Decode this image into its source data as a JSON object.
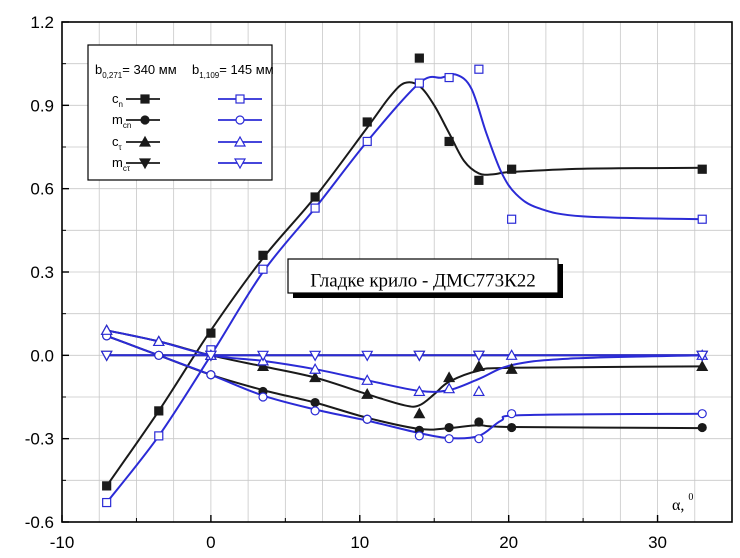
{
  "chart_data": {
    "type": "line",
    "title": "",
    "annotation": "Гладке крило - ДМС773К22",
    "xlabel": "α, ⁰",
    "xlabel_main": "α,",
    "xlabel_sup": "0",
    "ylabel": "",
    "xlim": [
      -10,
      35
    ],
    "ylim": [
      -0.6,
      1.2
    ],
    "xticks": [
      -10,
      0,
      10,
      20,
      30
    ],
    "yticks": [
      -0.6,
      -0.3,
      0.0,
      0.3,
      0.6,
      0.9,
      1.2
    ],
    "xtick_labels": [
      "-10",
      "0",
      "10",
      "20",
      "30"
    ],
    "ytick_labels": [
      "-0.6",
      "-0.3",
      "0.0",
      "0.3",
      "0.6",
      "0.9",
      "1.2"
    ],
    "grid": true,
    "legend_position": "top-left",
    "legend": {
      "group_titles": [
        {
          "main": "b",
          "sub": "0,271",
          "rest": "= 340 мм"
        },
        {
          "main": "b",
          "sub": "1,109",
          "rest": "= 145 мм"
        }
      ],
      "rows": [
        {
          "main": "c",
          "sub": "n"
        },
        {
          "main": "m",
          "sub": "cn"
        },
        {
          "main": "c",
          "sub": "τ"
        },
        {
          "main": "m",
          "sub": "cτ"
        }
      ]
    },
    "series": [
      {
        "name": "cn",
        "group": "b0,271 = 340 мм",
        "color": "#1a1a1a",
        "marker": "square-filled",
        "points": [
          [
            -7,
            -0.47
          ],
          [
            -3.5,
            -0.2
          ],
          [
            0,
            0.08
          ],
          [
            3.5,
            0.36
          ],
          [
            7,
            0.57
          ],
          [
            10.5,
            0.84
          ],
          [
            14,
            1.07
          ],
          [
            16,
            0.77
          ],
          [
            18,
            0.63
          ],
          [
            20.2,
            0.67
          ],
          [
            33,
            0.67
          ]
        ],
        "curve": [
          [
            -7,
            -0.47
          ],
          [
            -3.5,
            -0.2
          ],
          [
            0,
            0.09
          ],
          [
            3.5,
            0.35
          ],
          [
            7,
            0.57
          ],
          [
            10.5,
            0.82
          ],
          [
            12,
            0.93
          ],
          [
            13,
            0.98
          ],
          [
            14,
            0.97
          ],
          [
            15,
            0.9
          ],
          [
            16,
            0.8
          ],
          [
            17,
            0.7
          ],
          [
            18,
            0.655
          ],
          [
            19,
            0.652
          ],
          [
            20.2,
            0.66
          ],
          [
            25,
            0.672
          ],
          [
            33,
            0.675
          ]
        ]
      },
      {
        "name": "mcn",
        "group": "b0,271 = 340 мм",
        "color": "#1a1a1a",
        "marker": "circle-filled",
        "points": [
          [
            -7,
            0.07
          ],
          [
            -3.5,
            0.0
          ],
          [
            0,
            -0.07
          ],
          [
            3.5,
            -0.13
          ],
          [
            7,
            -0.17
          ],
          [
            10.5,
            -0.23
          ],
          [
            14,
            -0.27
          ],
          [
            16,
            -0.26
          ],
          [
            18,
            -0.24
          ],
          [
            20.2,
            -0.26
          ],
          [
            33,
            -0.26
          ]
        ],
        "curve": [
          [
            -7,
            0.07
          ],
          [
            -3.5,
            0.0
          ],
          [
            0,
            -0.07
          ],
          [
            3.5,
            -0.125
          ],
          [
            7,
            -0.17
          ],
          [
            10.5,
            -0.225
          ],
          [
            14,
            -0.265
          ],
          [
            16,
            -0.262
          ],
          [
            18,
            -0.252
          ],
          [
            20.2,
            -0.258
          ],
          [
            33,
            -0.262
          ]
        ]
      },
      {
        "name": "cτ",
        "group": "b0,271 = 340 мм",
        "color": "#1a1a1a",
        "marker": "triangle-up-filled",
        "points": [
          [
            -7,
            0.09
          ],
          [
            -3.5,
            0.05
          ],
          [
            0,
            0.0
          ],
          [
            3.5,
            -0.04
          ],
          [
            7,
            -0.08
          ],
          [
            10.5,
            -0.14
          ],
          [
            14,
            -0.21
          ],
          [
            16,
            -0.08
          ],
          [
            18,
            -0.04
          ],
          [
            20.2,
            -0.05
          ],
          [
            33,
            -0.04
          ]
        ],
        "curve": [
          [
            -7,
            0.09
          ],
          [
            -3.5,
            0.05
          ],
          [
            0,
            0.0
          ],
          [
            3.5,
            -0.04
          ],
          [
            7,
            -0.08
          ],
          [
            10.5,
            -0.14
          ],
          [
            13,
            -0.18
          ],
          [
            14,
            -0.18
          ],
          [
            15,
            -0.14
          ],
          [
            16,
            -0.095
          ],
          [
            18,
            -0.055
          ],
          [
            20.2,
            -0.045
          ],
          [
            33,
            -0.04
          ]
        ]
      },
      {
        "name": "mcτ",
        "group": "b0,271 = 340 мм",
        "color": "#1a1a1a",
        "marker": "triangle-down-filled",
        "points": [
          [
            -7,
            0.0
          ],
          [
            0,
            0.0
          ],
          [
            14,
            0.0
          ],
          [
            18,
            0.0
          ],
          [
            33,
            0.0
          ]
        ],
        "curve": [
          [
            -7,
            0.0
          ],
          [
            33,
            0.0
          ]
        ]
      },
      {
        "name": "cn",
        "group": "b1,109 = 145 мм",
        "color": "#2b2bd6",
        "marker": "square-open",
        "points": [
          [
            -7,
            -0.53
          ],
          [
            -3.5,
            -0.29
          ],
          [
            0,
            0.02
          ],
          [
            3.5,
            0.31
          ],
          [
            7,
            0.53
          ],
          [
            10.5,
            0.77
          ],
          [
            14,
            0.98
          ],
          [
            16,
            1.0
          ],
          [
            18,
            1.03
          ],
          [
            20.2,
            0.49
          ],
          [
            33,
            0.49
          ]
        ],
        "curve": [
          [
            -7,
            -0.53
          ],
          [
            -3.5,
            -0.29
          ],
          [
            0,
            0.0
          ],
          [
            3.5,
            0.3
          ],
          [
            7,
            0.53
          ],
          [
            10.5,
            0.77
          ],
          [
            14,
            0.98
          ],
          [
            15.5,
            1.0
          ],
          [
            16.5,
            1.01
          ],
          [
            17.5,
            0.96
          ],
          [
            18.5,
            0.8
          ],
          [
            19.5,
            0.66
          ],
          [
            20.5,
            0.58
          ],
          [
            22,
            0.53
          ],
          [
            25,
            0.5
          ],
          [
            33,
            0.49
          ]
        ]
      },
      {
        "name": "mcn",
        "group": "b1,109 = 145 мм",
        "color": "#2b2bd6",
        "marker": "circle-open",
        "points": [
          [
            -7,
            0.07
          ],
          [
            -3.5,
            0.0
          ],
          [
            0,
            -0.07
          ],
          [
            3.5,
            -0.15
          ],
          [
            7,
            -0.2
          ],
          [
            10.5,
            -0.23
          ],
          [
            14,
            -0.29
          ],
          [
            16,
            -0.3
          ],
          [
            18,
            -0.3
          ],
          [
            20.2,
            -0.21
          ],
          [
            33,
            -0.21
          ]
        ],
        "curve": [
          [
            -7,
            0.07
          ],
          [
            -3.5,
            0.0
          ],
          [
            0,
            -0.07
          ],
          [
            3.5,
            -0.145
          ],
          [
            7,
            -0.195
          ],
          [
            10.5,
            -0.235
          ],
          [
            14,
            -0.28
          ],
          [
            16,
            -0.298
          ],
          [
            18,
            -0.29
          ],
          [
            19.5,
            -0.235
          ],
          [
            21,
            -0.215
          ],
          [
            33,
            -0.21
          ]
        ]
      },
      {
        "name": "cτ",
        "group": "b1,109 = 145 мм",
        "color": "#2b2bd6",
        "marker": "triangle-up-open",
        "points": [
          [
            -7,
            0.09
          ],
          [
            -3.5,
            0.05
          ],
          [
            0,
            0.0
          ],
          [
            3.5,
            -0.02
          ],
          [
            7,
            -0.05
          ],
          [
            10.5,
            -0.09
          ],
          [
            14,
            -0.13
          ],
          [
            16,
            -0.12
          ],
          [
            18,
            -0.13
          ],
          [
            20.2,
            0.0
          ],
          [
            33,
            0.0
          ]
        ],
        "curve": [
          [
            -7,
            0.09
          ],
          [
            -3.5,
            0.05
          ],
          [
            0,
            0.0
          ],
          [
            3.5,
            -0.02
          ],
          [
            7,
            -0.05
          ],
          [
            10.5,
            -0.09
          ],
          [
            14,
            -0.128
          ],
          [
            16,
            -0.125
          ],
          [
            18,
            -0.085
          ],
          [
            20.2,
            -0.035
          ],
          [
            24,
            -0.012
          ],
          [
            33,
            0.0
          ]
        ]
      },
      {
        "name": "mcτ",
        "group": "b1,109 = 145 мм",
        "color": "#2b2bd6",
        "marker": "triangle-down-open",
        "points": [
          [
            -7,
            0.0
          ],
          [
            0,
            0.0
          ],
          [
            3.5,
            0.0
          ],
          [
            7,
            0.0
          ],
          [
            10.5,
            0.0
          ],
          [
            14,
            0.0
          ],
          [
            18,
            0.0
          ],
          [
            33,
            0.0
          ]
        ],
        "curve": [
          [
            -7,
            0.0
          ],
          [
            33,
            0.0
          ]
        ]
      }
    ]
  }
}
